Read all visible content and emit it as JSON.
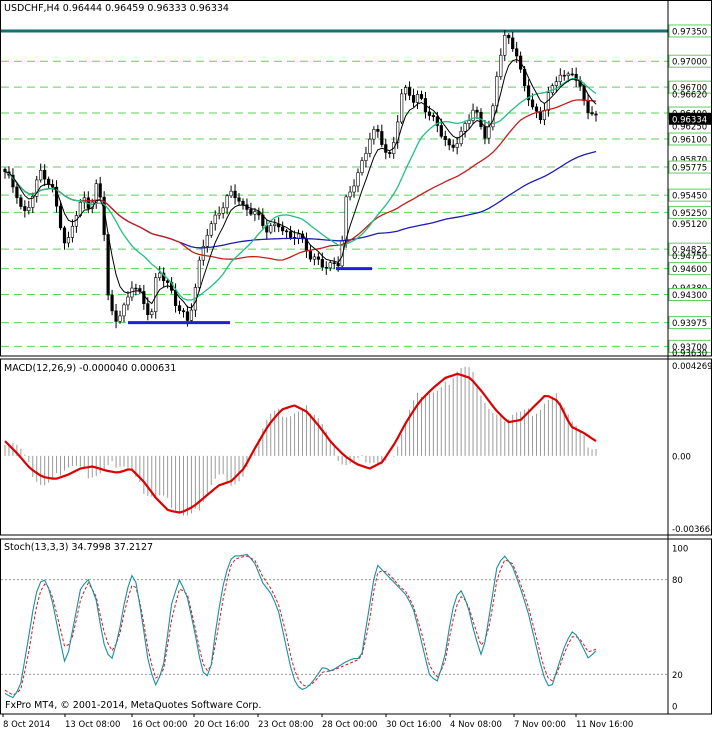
{
  "main": {
    "symbol_info": "USDCHF,H4  0.96444 0.96459 0.96333 0.96334",
    "price_labels": [
      "0.97350",
      "0.97000",
      "0.96700",
      "0.96620",
      "0.96400",
      "0.96250",
      "0.96100",
      "0.95870",
      "0.95775",
      "0.95450",
      "0.95250",
      "0.95120",
      "0.94825",
      "0.94750",
      "0.94600",
      "0.94380",
      "0.94300",
      "0.93975",
      "0.93700",
      "0.93630"
    ],
    "current_price": "0.96334",
    "colors": {
      "resistance": "#1a6e6e",
      "support": "#1f1fd6",
      "ma_slow": "#1c1cb8",
      "ma_mid": "#c51d1d",
      "ma_fast": "#20c080",
      "ma_black": "#000000",
      "candle": "#000000",
      "level_line": "#5fcf5f"
    }
  },
  "macd": {
    "label": "MACD(12,26,9) -0.000040 0.000631",
    "scale_labels": [
      "0.004269",
      "0.00",
      "-0.003664"
    ],
    "signal_color": "#dd0000",
    "hist_color": "#9a9a9a"
  },
  "stoch": {
    "label": "Stoch(13,3,3) 34.7998 37.2127",
    "scale_labels": [
      "100",
      "80",
      "20",
      "0"
    ],
    "main_color": "#1a8fa0",
    "signal_color": "#d01c1c"
  },
  "copyright": "FxPro MT4, © 2001-2014, MetaQuotes Software Corp.",
  "time_labels": [
    "8 Oct 2014",
    "13 Oct 08:00",
    "16 Oct 00:00",
    "20 Oct 16:00",
    "23 Oct 08:00",
    "28 Oct 00:00",
    "30 Oct 16:00",
    "4 Nov 08:00",
    "7 Nov 00:00",
    "11 Nov 16:00"
  ],
  "chart_data": [
    {
      "type": "candlestick",
      "title": "USDCHF,H4",
      "ohlc_last": {
        "open": 0.96444,
        "high": 0.96459,
        "low": 0.96333,
        "close": 0.96334
      },
      "ylim": [
        0.936,
        0.975
      ],
      "horizontal_levels": [
        0.9735,
        0.97,
        0.967,
        0.964,
        0.961,
        0.95775,
        0.9545,
        0.9525,
        0.94825,
        0.946,
        0.943,
        0.93975,
        0.937
      ],
      "resistance": 0.9735,
      "support_zones": [
        0.93975,
        0.946
      ],
      "close_path": [
        0.9572,
        0.956,
        0.9545,
        0.952,
        0.9535,
        0.9555,
        0.9575,
        0.956,
        0.9548,
        0.9515,
        0.948,
        0.951,
        0.953,
        0.954,
        0.953,
        0.9555,
        0.9535,
        0.942,
        0.9398,
        0.941,
        0.942,
        0.9445,
        0.9432,
        0.9415,
        0.9405,
        0.946,
        0.945,
        0.9438,
        0.942,
        0.941,
        0.9398,
        0.9428,
        0.947,
        0.95,
        0.9512,
        0.9525,
        0.9535,
        0.9548,
        0.9545,
        0.953,
        0.9528,
        0.9525,
        0.9515,
        0.9505,
        0.9508,
        0.9512,
        0.95,
        0.9495,
        0.9502,
        0.9488,
        0.9475,
        0.947,
        0.9465,
        0.9462,
        0.9465,
        0.9468,
        0.954,
        0.9555,
        0.957,
        0.959,
        0.9615,
        0.962,
        0.9605,
        0.9585,
        0.9612,
        0.966,
        0.9668,
        0.9655,
        0.966,
        0.9645,
        0.9635,
        0.9625,
        0.9612,
        0.9598,
        0.9605,
        0.9618,
        0.9632,
        0.9648,
        0.9625,
        0.9612,
        0.964,
        0.97,
        0.9728,
        0.9722,
        0.9708,
        0.9675,
        0.9658,
        0.964,
        0.9632,
        0.966,
        0.967,
        0.9688,
        0.9678,
        0.969,
        0.9675,
        0.9655,
        0.964,
        0.9634
      ]
    },
    {
      "type": "line",
      "title": "MACD(12,26,9)",
      "ylim": [
        -0.003664,
        0.004269
      ],
      "series": [
        {
          "name": "signal",
          "values": [
            0.0007,
            0.0001,
            -0.0006,
            -0.001,
            -0.0011,
            -0.0009,
            -0.0006,
            -0.0005,
            -0.0007,
            -0.0008,
            -0.0006,
            -0.0012,
            -0.002,
            -0.0026,
            -0.0027,
            -0.0024,
            -0.0019,
            -0.0014,
            -0.0012,
            -0.0006,
            0.0005,
            0.0015,
            0.0022,
            0.0024,
            0.0021,
            0.0014,
            0.0006,
            0.0,
            -0.0004,
            -0.0006,
            -0.0003,
            0.0006,
            0.0017,
            0.0026,
            0.0032,
            0.0037,
            0.0039,
            0.0037,
            0.003,
            0.0022,
            0.0016,
            0.0017,
            0.0023,
            0.0029,
            0.0026,
            0.0014,
            0.0011,
            0.0007
          ]
        }
      ]
    },
    {
      "type": "line",
      "title": "Stoch(13,3,3)",
      "ylim": [
        0,
        100
      ],
      "series": [
        {
          "name": "%K",
          "values": [
            8,
            5,
            12,
            40,
            70,
            82,
            72,
            48,
            25,
            50,
            75,
            80,
            68,
            40,
            28,
            45,
            72,
            86,
            58,
            25,
            12,
            28,
            65,
            80,
            70,
            48,
            22,
            18,
            55,
            82,
            95,
            95,
            96,
            90,
            78,
            72,
            62,
            40,
            18,
            10,
            12,
            18,
            25,
            22,
            25,
            28,
            30,
            30,
            60,
            90,
            85,
            80,
            75,
            70,
            60,
            40,
            20,
            15,
            30,
            60,
            75,
            65,
            45,
            30,
            60,
            90,
            95,
            88,
            75,
            60,
            40,
            20,
            10,
            25,
            40,
            48,
            40,
            30,
            35
          ]
        },
        {
          "name": "%D",
          "values": [
            10,
            7,
            9,
            30,
            60,
            78,
            74,
            55,
            35,
            45,
            68,
            78,
            70,
            48,
            34,
            42,
            65,
            80,
            62,
            32,
            16,
            24,
            55,
            74,
            72,
            52,
            28,
            20,
            45,
            74,
            92,
            94,
            95,
            92,
            82,
            75,
            66,
            48,
            25,
            14,
            12,
            16,
            22,
            22,
            24,
            26,
            28,
            30,
            50,
            84,
            86,
            82,
            76,
            72,
            62,
            46,
            26,
            18,
            26,
            52,
            70,
            66,
            50,
            36,
            52,
            82,
            93,
            90,
            78,
            64,
            46,
            26,
            14,
            22,
            36,
            45,
            42,
            34,
            36
          ]
        }
      ]
    }
  ]
}
